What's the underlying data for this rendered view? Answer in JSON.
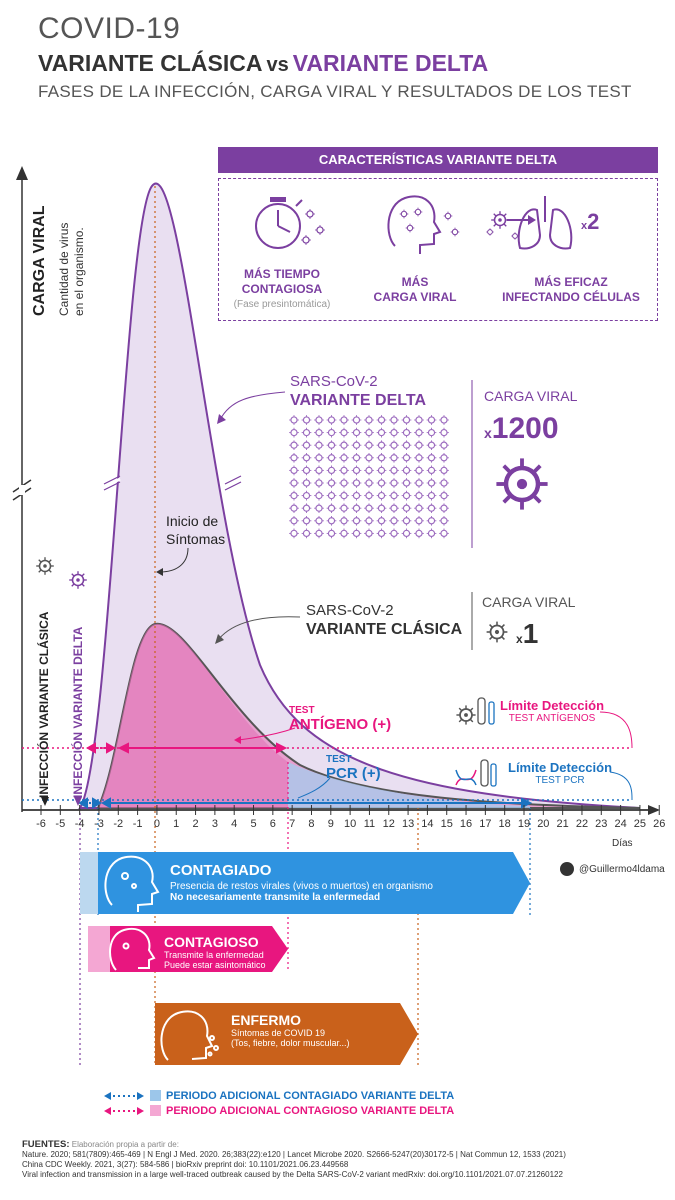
{
  "header": {
    "covid": "COVID-19",
    "title_clasica": "VARIANTE CLÁSICA",
    "title_vs": "vs",
    "title_delta": "VARIANTE DELTA",
    "subtitle": "FASES DE LA INFECCIÓN, CARGA VIRAL Y RESULTADOS DE LOS TEST"
  },
  "caracteristicas": {
    "heading": "CARACTERÍSTICAS VARIANTE DELTA",
    "item1_line1": "MÁS TIEMPO",
    "item1_line2": "CONTAGIOSA",
    "item1_note": "(Fase presintomática)",
    "item2_line1": "MÁS",
    "item2_line2": "CARGA VIRAL",
    "item3_line1": "MÁS EFICAZ",
    "item3_line2": "INFECTANDO CÉLULAS",
    "item3_mult_prefix": "x",
    "item3_mult": "2"
  },
  "yaxis": {
    "title": "CARGA VIRAL",
    "desc1": "Cantidad de virus",
    "desc2": "en el organismo."
  },
  "curves": {
    "delta_name1": "SARS-CoV-2",
    "delta_name2": "VARIANTE DELTA",
    "clasica_name1": "SARS-CoV-2",
    "clasica_name2": "VARIANTE CLÁSICA",
    "carga_viral_label": "CARGA VIRAL",
    "delta_mult_prefix": "x",
    "delta_mult": "1200",
    "clasica_mult_prefix": "x",
    "clasica_mult": "1",
    "inicio1": "Inicio de",
    "inicio2": "Síntomas"
  },
  "infection_labels": {
    "clasica": "INFECCIÓN VARIANTE CLÁSICA",
    "delta": "INFECCIÓN VARIANTE DELTA"
  },
  "tests": {
    "antigeno_test": "TEST",
    "antigeno_name": "ANTÍGENO (+)",
    "pcr_test": "TEST",
    "pcr_name": "PCR (+)",
    "lim_ant_title": "Límite Detección",
    "lim_ant_sub": "TEST ANTÍGENOS",
    "lim_pcr_title": "Límite Detección",
    "lim_pcr_sub": "TEST PCR"
  },
  "xaxis": {
    "unit": "Días",
    "ticks": [
      "-6",
      "-5",
      "-4",
      "-3",
      "-2",
      "-1",
      "0",
      "1",
      "2",
      "3",
      "4",
      "5",
      "6",
      "7",
      "8",
      "9",
      "10",
      "11",
      "12",
      "13",
      "14",
      "15",
      "16",
      "17",
      "18",
      "19",
      "20",
      "21",
      "22",
      "23",
      "24",
      "25",
      "26"
    ]
  },
  "bands": {
    "contagiado_title": "CONTAGIADO",
    "contagiado_l1": "Presencia de restos virales (vivos o muertos) en organismo",
    "contagiado_l2": "No necesariamente transmite la enfermedad",
    "contagioso_title": "CONTAGIOSO",
    "contagioso_l1": "Transmite la enfermedad",
    "contagioso_l2": "Puede estar asintomático",
    "enfermo_title": "ENFERMO",
    "enfermo_l1": "Síntomas de COVID 19",
    "enfermo_l2": "(Tos, fiebre, dolor muscular...)"
  },
  "twitter": "@Guillermo4ldama",
  "legend": {
    "item1": "PERIODO ADICIONAL CONTAGIADO VARIANTE DELTA",
    "item2": "PERIODO ADICIONAL CONTAGIOSO VARIANTE DELTA"
  },
  "sources": {
    "label": "FUENTES:",
    "intro": "Elaboración propia a partir de:",
    "line1": "Nature. 2020; 581(7809):465-469 | N Engl J Med. 2020. 26;383(22):e120 | Lancet Microbe 2020. S2666-5247(20)30172-5 | Nat Commun 12, 1533 (2021)",
    "line2": "China CDC Weekly. 2021, 3(27): 584-586 | bioRxiv preprint doi: 10.1101/2021.06.23.449568",
    "line3": "Viral infection and transmission in a large well-traced outbreak caused by the Delta SARS-CoV-2 variant medRxiv: doi.org/10.1101/2021.07.07.21260122"
  },
  "colors": {
    "delta": "#7b3fa0",
    "antigeno": "#e8167f",
    "pcr": "#1b73c0",
    "enfermo": "#c9611b",
    "contagiado": "#2f93e0"
  }
}
